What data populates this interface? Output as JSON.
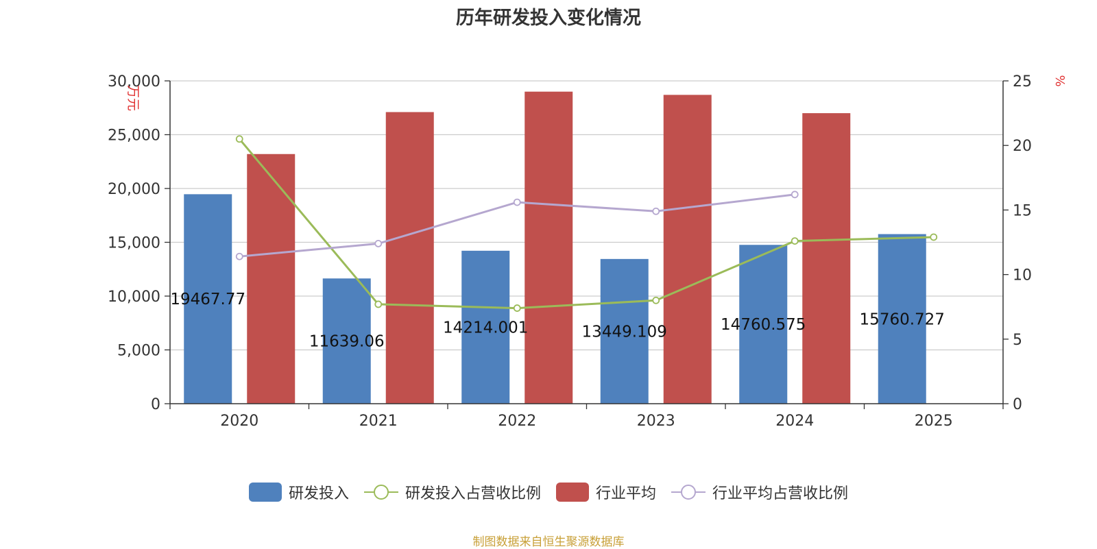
{
  "colors": {
    "rd_bar": "#4f81bd",
    "industry_bar": "#c0504d",
    "rd_ratio_line": "#9bbb59",
    "industry_ratio_line": "#b5a7cf",
    "axis_unit": "#e03030",
    "source": "#c8a038"
  },
  "source_text": "制图数据来自恒生聚源数据库",
  "chart_data": {
    "type": "bar",
    "title": "历年研发投入变化情况",
    "categories": [
      "2020",
      "2021",
      "2022",
      "2023",
      "2024",
      "2025"
    ],
    "y_left": {
      "label": "万元",
      "ylim": [
        0,
        30000
      ],
      "ticks": [
        "0",
        "5,000",
        "10,000",
        "15,000",
        "20,000",
        "25,000",
        "30,000"
      ]
    },
    "y_right": {
      "label": "%",
      "ylim": [
        0,
        25
      ],
      "ticks": [
        "0",
        "5",
        "10",
        "15",
        "20",
        "25"
      ]
    },
    "grid": true,
    "legend_position": "bottom",
    "series": [
      {
        "name": "研发投入",
        "kind": "bar",
        "axis": "left",
        "values": [
          19467.77,
          11639.06,
          14214.001,
          13449.109,
          14760.575,
          15760.727
        ],
        "labels": [
          "19467.77",
          "11639.06",
          "14214.001",
          "13449.109",
          "14760.575",
          "15760.727"
        ]
      },
      {
        "name": "研发投入占营收比例",
        "kind": "line",
        "axis": "right",
        "values": [
          20.5,
          7.7,
          7.4,
          8.0,
          12.6,
          12.9
        ]
      },
      {
        "name": "行业平均",
        "kind": "bar",
        "axis": "left",
        "values": [
          23200,
          27100,
          29000,
          28700,
          27000,
          null
        ]
      },
      {
        "name": "行业平均占营收比例",
        "kind": "line",
        "axis": "right",
        "values": [
          11.4,
          12.4,
          15.6,
          14.9,
          16.2,
          null
        ]
      }
    ]
  }
}
